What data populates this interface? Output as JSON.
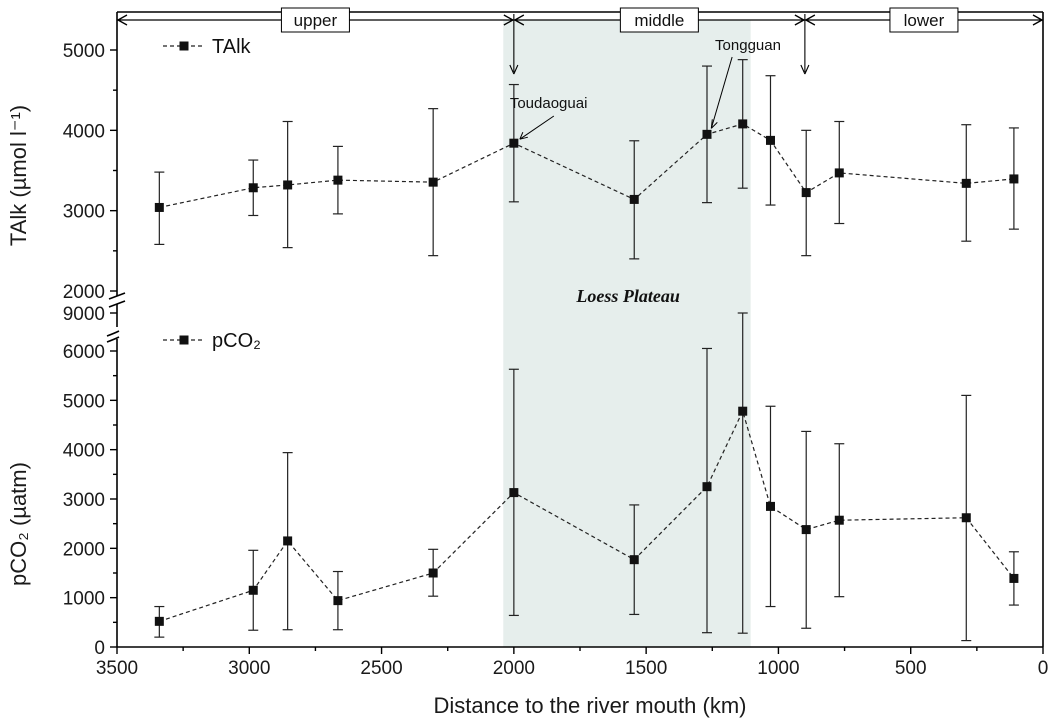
{
  "chart_data": {
    "type": "line",
    "xlabel": "Distance to the river mouth (km)",
    "x_ticks": [
      "3500",
      "3000",
      "2500",
      "2000",
      "1500",
      "1000",
      "500",
      "0"
    ],
    "xlim": [
      3500,
      0
    ],
    "regions": [
      {
        "label": "upper",
        "from": 3500,
        "to": 2000
      },
      {
        "label": "middle",
        "from": 2000,
        "to": 900
      },
      {
        "label": "lower",
        "from": 900,
        "to": 0
      }
    ],
    "shaded_region": {
      "label": "Loess Plateau",
      "from": 2040,
      "to": 1105,
      "color": "#e6eeec"
    },
    "annotations": [
      {
        "text": "Toudaoguai",
        "x": 2000
      },
      {
        "text": "Tongguan",
        "x": 1265
      }
    ],
    "panels": [
      {
        "ylabel": "TAlk (µmol l⁻¹)",
        "ylim": [
          2000,
          5000
        ],
        "y_ticks": [
          "2000",
          "3000",
          "4000",
          "5000"
        ],
        "series": [
          {
            "name": "TAlk",
            "x": [
              3340,
              2985,
              2855,
              2665,
              2305,
              2000,
              1545,
              1270,
              1135,
              1030,
              895,
              770,
              290,
              110
            ],
            "y": [
              3040,
              3285,
              3320,
              3380,
              3355,
              3840,
              3140,
              3950,
              4080,
              3875,
              3225,
              3470,
              3340,
              3395
            ],
            "err_low": [
              2580,
              2940,
              2540,
              2960,
              2440,
              3110,
              2400,
              3100,
              3280,
              3070,
              2440,
              2840,
              2620,
              2770
            ],
            "err_high": [
              3480,
              3630,
              4110,
              3800,
              4270,
              4570,
              3870,
              4800,
              4880,
              4680,
              4000,
              4110,
              4070,
              4030
            ]
          }
        ]
      },
      {
        "ylabel": "pCO₂ (µatm)",
        "ylim": [
          0,
          6000
        ],
        "y_ticks": [
          "0",
          "1000",
          "2000",
          "3000",
          "4000",
          "5000",
          "6000"
        ],
        "axis_break": {
          "after": 6000,
          "top_tick": "9000",
          "top_value": 9000
        },
        "series": [
          {
            "name": "pCO₂",
            "x": [
              3340,
              2985,
              2855,
              2665,
              2305,
              2000,
              1545,
              1270,
              1135,
              1030,
              895,
              770,
              290,
              110
            ],
            "y": [
              520,
              1150,
              2150,
              940,
              1500,
              3130,
              1770,
              3250,
              4780,
              2850,
              2380,
              2570,
              2620,
              1390
            ],
            "err_low": [
              200,
              340,
              350,
              350,
              1030,
              640,
              660,
              290,
              280,
              820,
              380,
              1020,
              130,
              850
            ],
            "err_high": [
              820,
              1960,
              3940,
              1530,
              1980,
              5630,
              2880,
              6200,
              9000,
              4880,
              4370,
              4120,
              5100,
              1930
            ]
          }
        ]
      }
    ]
  }
}
